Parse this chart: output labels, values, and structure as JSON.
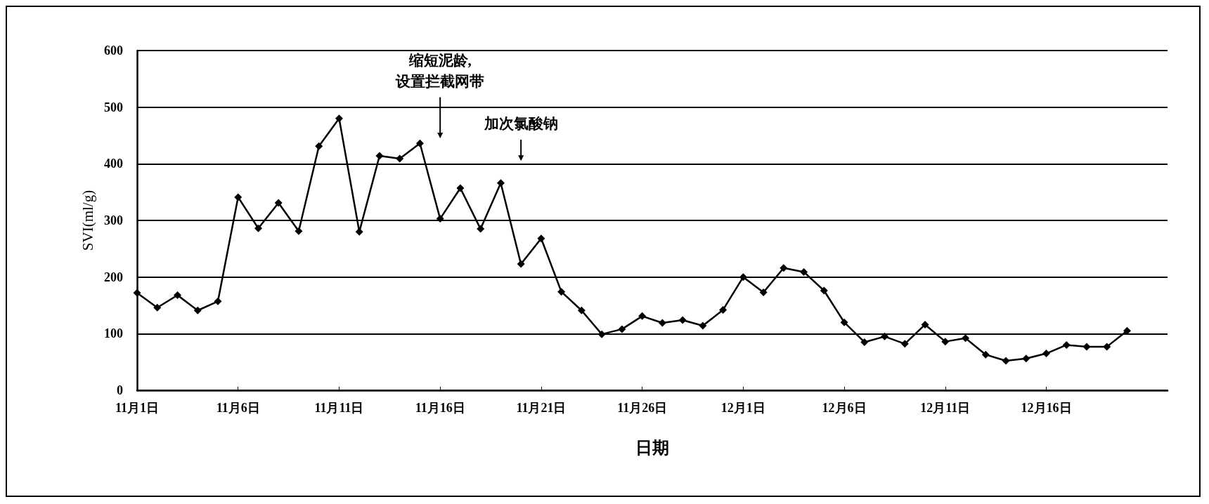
{
  "chart_data": {
    "type": "line",
    "xlabel": "日期",
    "ylabel": "SVI(ml/g)",
    "categories": [
      "11月1日",
      null,
      null,
      null,
      null,
      "11月6日",
      null,
      null,
      null,
      null,
      "11月11日",
      null,
      null,
      null,
      null,
      "11月16日",
      null,
      null,
      null,
      null,
      "11月21日",
      null,
      null,
      null,
      null,
      "11月26日",
      null,
      null,
      null,
      null,
      "12月1日",
      null,
      null,
      null,
      null,
      "12月6日",
      null,
      null,
      null,
      null,
      "12月11日",
      null,
      null,
      null,
      null,
      "12月16日",
      null,
      null,
      null,
      null,
      null,
      null
    ],
    "values": [
      172,
      146,
      168,
      141,
      157,
      341,
      286,
      331,
      281,
      431,
      480,
      280,
      414,
      409,
      436,
      303,
      357,
      285,
      366,
      223,
      268,
      174,
      141,
      99,
      108,
      131,
      119,
      124,
      114,
      142,
      200,
      173,
      216,
      209,
      176,
      120,
      85,
      95,
      82,
      116,
      86,
      92,
      63,
      52,
      56,
      65,
      80,
      77,
      77,
      105,
      null,
      null
    ],
    "color": "#000000",
    "ylim": [
      0,
      600
    ],
    "yticks": [
      0,
      100,
      200,
      300,
      400,
      500,
      600
    ],
    "grid": "y",
    "marker": "diamond",
    "line_style": "solid",
    "annotations": [
      "缩短泥龄,\n设置拦截网带",
      "加次氯酸钠"
    ]
  }
}
